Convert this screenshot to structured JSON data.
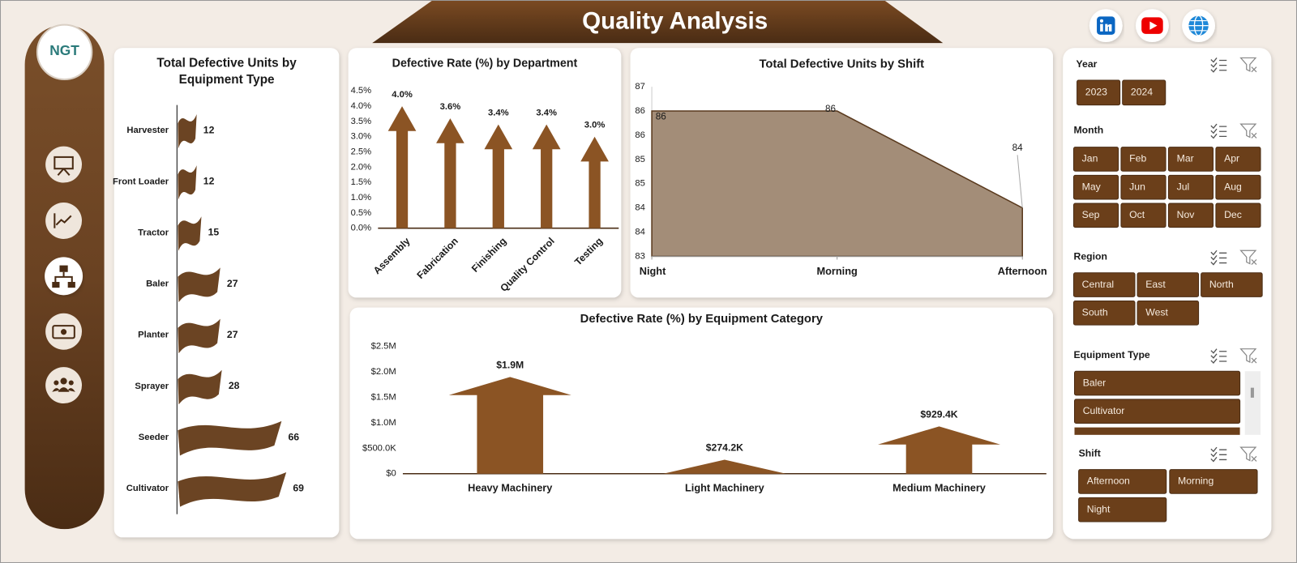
{
  "header": {
    "title": "Quality Analysis",
    "logo": "NGT"
  },
  "chart_data": [
    {
      "type": "flag",
      "title": "Total Defective Units by Equipment Type",
      "categories": [
        "Harvester",
        "Front Loader",
        "Tractor",
        "Baler",
        "Planter",
        "Sprayer",
        "Seeder",
        "Cultivator"
      ],
      "values": [
        12,
        12,
        15,
        27,
        27,
        28,
        66,
        69
      ],
      "color": "#6b4423",
      "xlim": [
        0,
        80
      ],
      "grid": false
    },
    {
      "type": "arrow",
      "title": "Defective Rate (%) by Department",
      "categories": [
        "Assembly",
        "Fabrication",
        "Finishing",
        "Quality Control",
        "Testing"
      ],
      "values": [
        4.0,
        3.6,
        3.4,
        3.4,
        3.0
      ],
      "value_labels": [
        "4.0%",
        "3.6%",
        "3.4%",
        "3.4%",
        "3.0%"
      ],
      "color": "#8b5424",
      "ylim": [
        0,
        4.5
      ],
      "yticks": [
        {
          "value": 0,
          "label": "0.0%"
        },
        {
          "value": 0.5,
          "label": "0.5%"
        },
        {
          "value": 1,
          "label": "1.0%"
        },
        {
          "value": 1.5,
          "label": "1.5%"
        },
        {
          "value": 2,
          "label": "2.0%"
        },
        {
          "value": 2.5,
          "label": "2.5%"
        },
        {
          "value": 3,
          "label": "3.0%"
        },
        {
          "value": 3.5,
          "label": "3.5%"
        },
        {
          "value": 4,
          "label": "4.0%"
        },
        {
          "value": 4.5,
          "label": "4.5%"
        }
      ],
      "grid": false
    },
    {
      "type": "area",
      "title": "Total Defective Units by Shift",
      "categories": [
        "Night",
        "Morning",
        "Afternoon"
      ],
      "values": [
        86,
        86,
        84
      ],
      "color": "#a38d78",
      "ylim": [
        83,
        86.5
      ],
      "yticks": [
        83,
        {
          "value": 83.5,
          "label": "84"
        },
        84,
        {
          "value": 84.5,
          "label": "85"
        },
        85,
        {
          "value": 85.5,
          "label": "86"
        },
        86,
        {
          "value": 86.5,
          "label": "87"
        }
      ],
      "grid": false
    },
    {
      "type": "arrow",
      "title": "Defective Rate (%) by Equipment Category",
      "categories": [
        "Heavy Machinery",
        "Light Machinery",
        "Medium Machinery"
      ],
      "values": [
        1900000,
        274200,
        929400
      ],
      "value_labels": [
        "$1.9M",
        "$274.2K",
        "$929.4K"
      ],
      "color": "#8b5424",
      "ylim": [
        0,
        2500000
      ],
      "yticks": [
        {
          "value": 0,
          "label": "$0"
        },
        {
          "value": 500000,
          "label": "$500.0K"
        },
        {
          "value": 1000000,
          "label": "$1.0M"
        },
        {
          "value": 1500000,
          "label": "$1.5M"
        },
        {
          "value": 2000000,
          "label": "$2.0M"
        },
        {
          "value": 2500000,
          "label": "$2.5M"
        }
      ],
      "grid": false
    }
  ],
  "slicers": [
    {
      "title": "Year",
      "items": [
        "2023",
        "2024"
      ]
    },
    {
      "title": "Month",
      "items": [
        "Jan",
        "Feb",
        "Mar",
        "Apr",
        "May",
        "Jun",
        "Jul",
        "Aug",
        "Sep",
        "Oct",
        "Nov",
        "Dec"
      ]
    },
    {
      "title": "Region",
      "items": [
        "Central",
        "East",
        "North",
        "South",
        "West"
      ]
    },
    {
      "title": "Equipment Type",
      "items": [
        "Baler",
        "Cultivator"
      ]
    },
    {
      "title": "Shift",
      "items": [
        "Afternoon",
        "Morning",
        "Night"
      ]
    }
  ]
}
